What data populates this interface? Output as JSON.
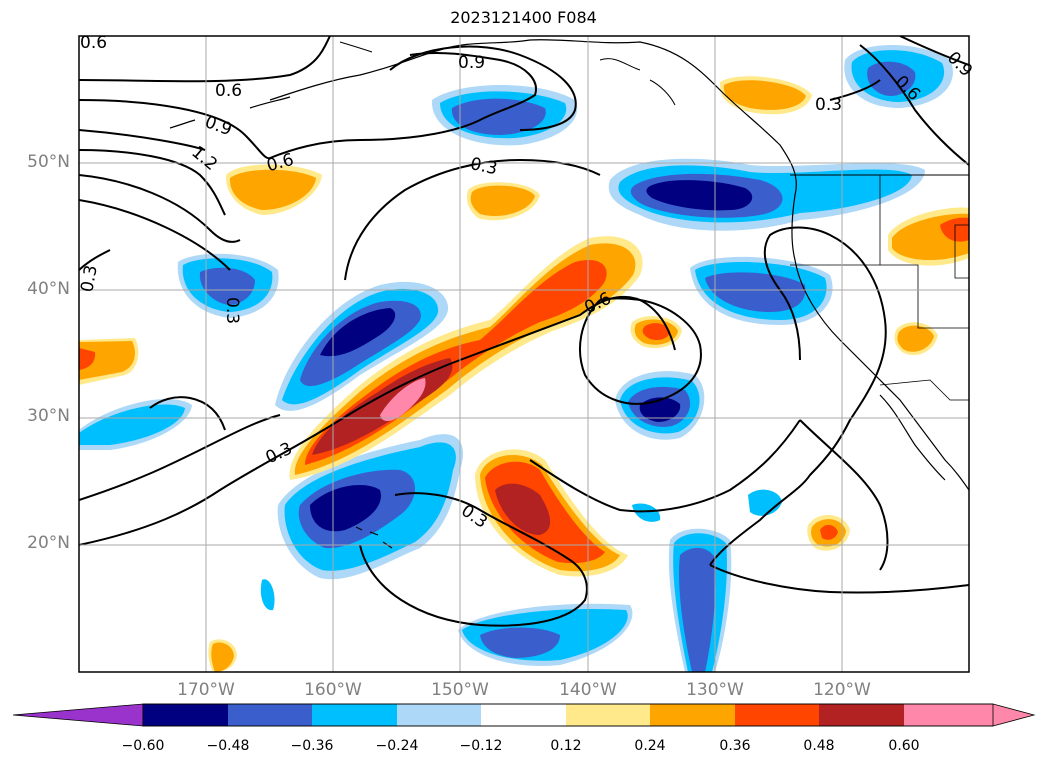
{
  "map": {
    "title": "2023121400 F084",
    "extent": {
      "lon_min": -180,
      "lon_max": -110,
      "lat_min": 10,
      "lat_max": 60
    },
    "projection": "PlateCarree",
    "gridlines": true,
    "lat_labels": [
      "20°N",
      "30°N",
      "40°N",
      "50°N"
    ],
    "lon_labels": [
      "170°W",
      "160°W",
      "150°W",
      "140°W",
      "130°W",
      "120°W"
    ],
    "line_contour_labels": [
      "0.6",
      "0.9",
      "0.6",
      "0.9",
      "1.2",
      "0.6",
      "0.3",
      "0.3",
      "0.3",
      "0.6",
      "0.3",
      "0.3",
      "0.3",
      "0.6",
      "0.9"
    ],
    "filled_levels": [
      -0.6,
      -0.48,
      -0.36,
      -0.24,
      -0.12,
      0.12,
      0.24,
      0.36,
      0.48,
      0.6
    ],
    "colors": {
      "extend_min": "#9933cc",
      "bins": [
        "#000080",
        "#3a5fcd",
        "#00bfff",
        "#add8f7",
        "#ffffff",
        "#ffe98a",
        "#ffa500",
        "#ff4500",
        "#b22222",
        "#ff88aa"
      ],
      "extend_max": "#ff88aa"
    }
  },
  "colorbar": {
    "orientation": "horizontal",
    "extend": "both",
    "tick_labels": [
      "−0.60",
      "−0.48",
      "−0.36",
      "−0.24",
      "−0.12",
      "0.12",
      "0.24",
      "0.36",
      "0.48",
      "0.60"
    ]
  }
}
